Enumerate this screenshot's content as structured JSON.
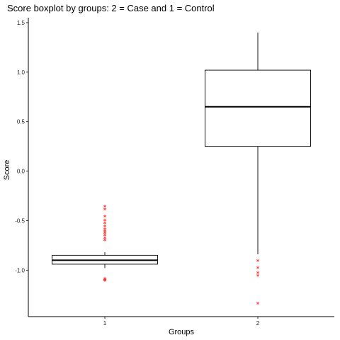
{
  "chart_data": {
    "type": "boxplot",
    "title": "Score boxplot by groups: 2 = Case and 1 = Control",
    "xlabel": "Groups",
    "ylabel": "Score",
    "ylim": [
      -1.47,
      1.55
    ],
    "yticks": [
      1.5,
      1.0,
      0.5,
      0.0,
      -0.5,
      -1.0
    ],
    "ytick_labels": [
      "1.5",
      "1.0",
      "0.5",
      "0.0",
      "-0.5",
      "-1.0"
    ],
    "categories": [
      "1",
      "2"
    ],
    "grid": false,
    "outlier_color": "#ff0000",
    "outlier_marker": "*",
    "boxes": [
      {
        "group": "1",
        "whisker_low": -0.98,
        "q1": -0.94,
        "median": -0.9,
        "q3": -0.85,
        "whisker_high": -0.82,
        "outliers": [
          -0.36,
          -0.39,
          -0.46,
          -0.5,
          -0.53,
          -0.56,
          -0.59,
          -0.61,
          -0.63,
          -0.65,
          -0.68,
          -0.7,
          -1.09,
          -1.1,
          -1.11
        ]
      },
      {
        "group": "2",
        "whisker_low": -0.84,
        "q1": 0.25,
        "median": 0.65,
        "q3": 1.02,
        "whisker_high": 1.4,
        "outliers": [
          -0.91,
          -0.98,
          -1.03,
          -1.06,
          -1.34
        ]
      }
    ]
  }
}
